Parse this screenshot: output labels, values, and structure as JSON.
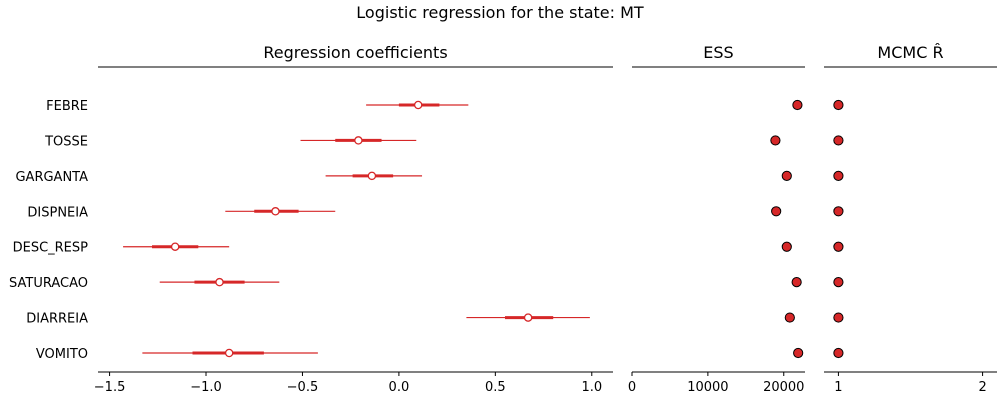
{
  "chart_data": {
    "type": "forest",
    "title": "Logistic regression for the state: MT",
    "variables": [
      "FEBRE",
      "TOSSE",
      "GARGANTA",
      "DISPNEIA",
      "DESC_RESP",
      "SATURACAO",
      "DIARREIA",
      "VOMITO"
    ],
    "series_color": "#d62728",
    "panels": [
      {
        "id": "coef",
        "title": "Regression coefficients",
        "xlim": [
          -1.56,
          1.11
        ],
        "xticks": [
          -1.5,
          -1.0,
          -0.5,
          0.0,
          0.5,
          1.0
        ],
        "xtick_labels": [
          "−1.5",
          "−1.0",
          "−0.5",
          "0.0",
          "0.5",
          "1.0"
        ],
        "mean": [
          0.1,
          -0.21,
          -0.14,
          -0.64,
          -1.16,
          -0.93,
          0.67,
          -0.88
        ],
        "hdi_inner": [
          [
            0.0,
            0.21
          ],
          [
            -0.33,
            -0.09
          ],
          [
            -0.24,
            -0.03
          ],
          [
            -0.75,
            -0.52
          ],
          [
            -1.28,
            -1.04
          ],
          [
            -1.06,
            -0.8
          ],
          [
            0.55,
            0.8
          ],
          [
            -1.07,
            -0.7
          ]
        ],
        "hdi_outer": [
          [
            -0.17,
            0.36
          ],
          [
            -0.51,
            0.09
          ],
          [
            -0.38,
            0.12
          ],
          [
            -0.9,
            -0.33
          ],
          [
            -1.43,
            -0.88
          ],
          [
            -1.24,
            -0.62
          ],
          [
            0.35,
            0.99
          ],
          [
            -1.33,
            -0.42
          ]
        ]
      },
      {
        "id": "ess",
        "title": "ESS",
        "xlim": [
          0,
          22800
        ],
        "xticks": [
          0,
          10000,
          20000
        ],
        "xtick_labels": [
          "0",
          "10000",
          "20000"
        ],
        "values": [
          21800,
          18900,
          20400,
          19000,
          20400,
          21700,
          20800,
          21900
        ]
      },
      {
        "id": "rhat",
        "title": "MCMC R̂",
        "xlim": [
          0.9,
          2.1
        ],
        "xticks": [
          1,
          2
        ],
        "xtick_labels": [
          "1",
          "2"
        ],
        "values": [
          1.0,
          1.0,
          1.0,
          1.0,
          1.0,
          1.0,
          1.0,
          1.0
        ]
      }
    ]
  }
}
